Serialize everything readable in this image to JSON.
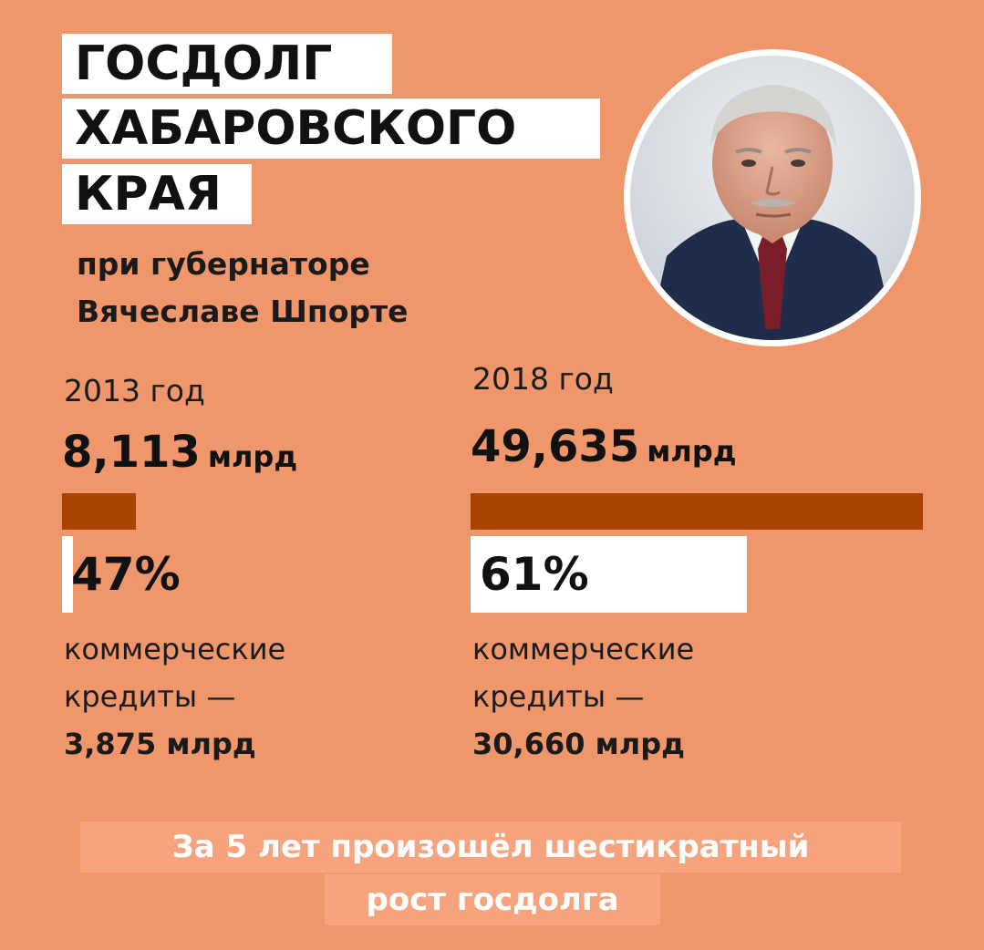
{
  "title": {
    "line1": "ГОСДОЛГ",
    "line2": "ХАБАРОВСКОГО",
    "line3": "КРАЯ"
  },
  "subtitle": {
    "line1": "при губернаторе",
    "line2": "Вячеславе Шпорте"
  },
  "colors": {
    "background": "#F0966B",
    "bar": "#A84300",
    "highlight": "#FFFFFF",
    "footer_bg": "#F7A47E"
  },
  "chart_data": {
    "type": "bar",
    "categories": [
      "2013 год",
      "2018 год"
    ],
    "values": [
      8.113,
      49.635
    ],
    "value_labels": [
      "8,113",
      "49,635"
    ],
    "unit": "млрд",
    "commercial_share_percent": [
      47,
      61
    ],
    "commercial_share_labels": [
      "47%",
      "61%"
    ],
    "commercial_label_line1": "коммерческие",
    "commercial_label_line2": "кредиты —",
    "commercial_amount_labels": [
      "3,875 млрд",
      "30,660 млрд"
    ],
    "title": "ГОСДОЛГ ХАБАРОВСКОГО КРАЯ",
    "xlabel": "",
    "ylabel": ""
  },
  "footer": {
    "line1": "За 5 лет произошёл шестикратный",
    "line2": "рост госдолга"
  }
}
